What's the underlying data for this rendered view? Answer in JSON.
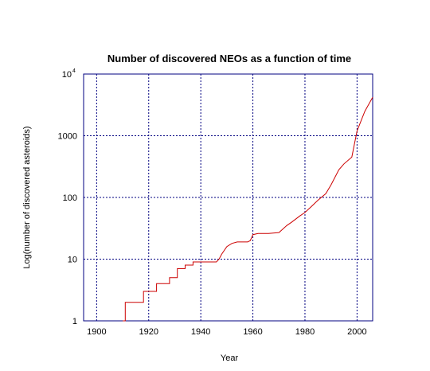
{
  "chart_data": {
    "type": "line",
    "title": "Number of discovered NEOs as a function of time",
    "xlabel": "Year",
    "ylabel": "Log(number of discovered asteroids)",
    "xlim": [
      1895,
      2006
    ],
    "ylim": [
      1,
      10000
    ],
    "yscale": "log",
    "grid": true,
    "x_ticks": [
      "1900",
      "1920",
      "1940",
      "1960",
      "1980",
      "2000"
    ],
    "y_ticks": [
      {
        "value": 1,
        "label": "1"
      },
      {
        "value": 10,
        "label": "10"
      },
      {
        "value": 100,
        "label": "100"
      },
      {
        "value": 1000,
        "label": "1000"
      },
      {
        "value": 10000,
        "base": "10",
        "exp": "4"
      }
    ],
    "colors": {
      "line": "#cc0000",
      "grid": "#000080",
      "axes": "#000080"
    },
    "series": [
      {
        "x": [
          1910,
          1911,
          1911,
          1917,
          1918,
          1918,
          1922,
          1923,
          1923,
          1927,
          1928,
          1928,
          1930,
          1931,
          1931,
          1933,
          1934,
          1934,
          1936,
          1937,
          1937,
          1946,
          1947,
          1948,
          1950,
          1952,
          1954,
          1958,
          1959,
          1960,
          1962,
          1966,
          1970,
          1973,
          1975,
          1978,
          1980,
          1983,
          1985,
          1988,
          1990,
          1993,
          1995,
          1998,
          2000,
          2003,
          2006
        ],
        "y": [
          1,
          1,
          2,
          2,
          2,
          3,
          3,
          3,
          4,
          4,
          4,
          5,
          5,
          5,
          7,
          7,
          7,
          8,
          8,
          8,
          9,
          9,
          10,
          12,
          16,
          18,
          19,
          19,
          20,
          25,
          26,
          26,
          27,
          35,
          40,
          50,
          57,
          75,
          90,
          115,
          160,
          280,
          350,
          450,
          1200,
          2500,
          4200
        ]
      }
    ]
  }
}
